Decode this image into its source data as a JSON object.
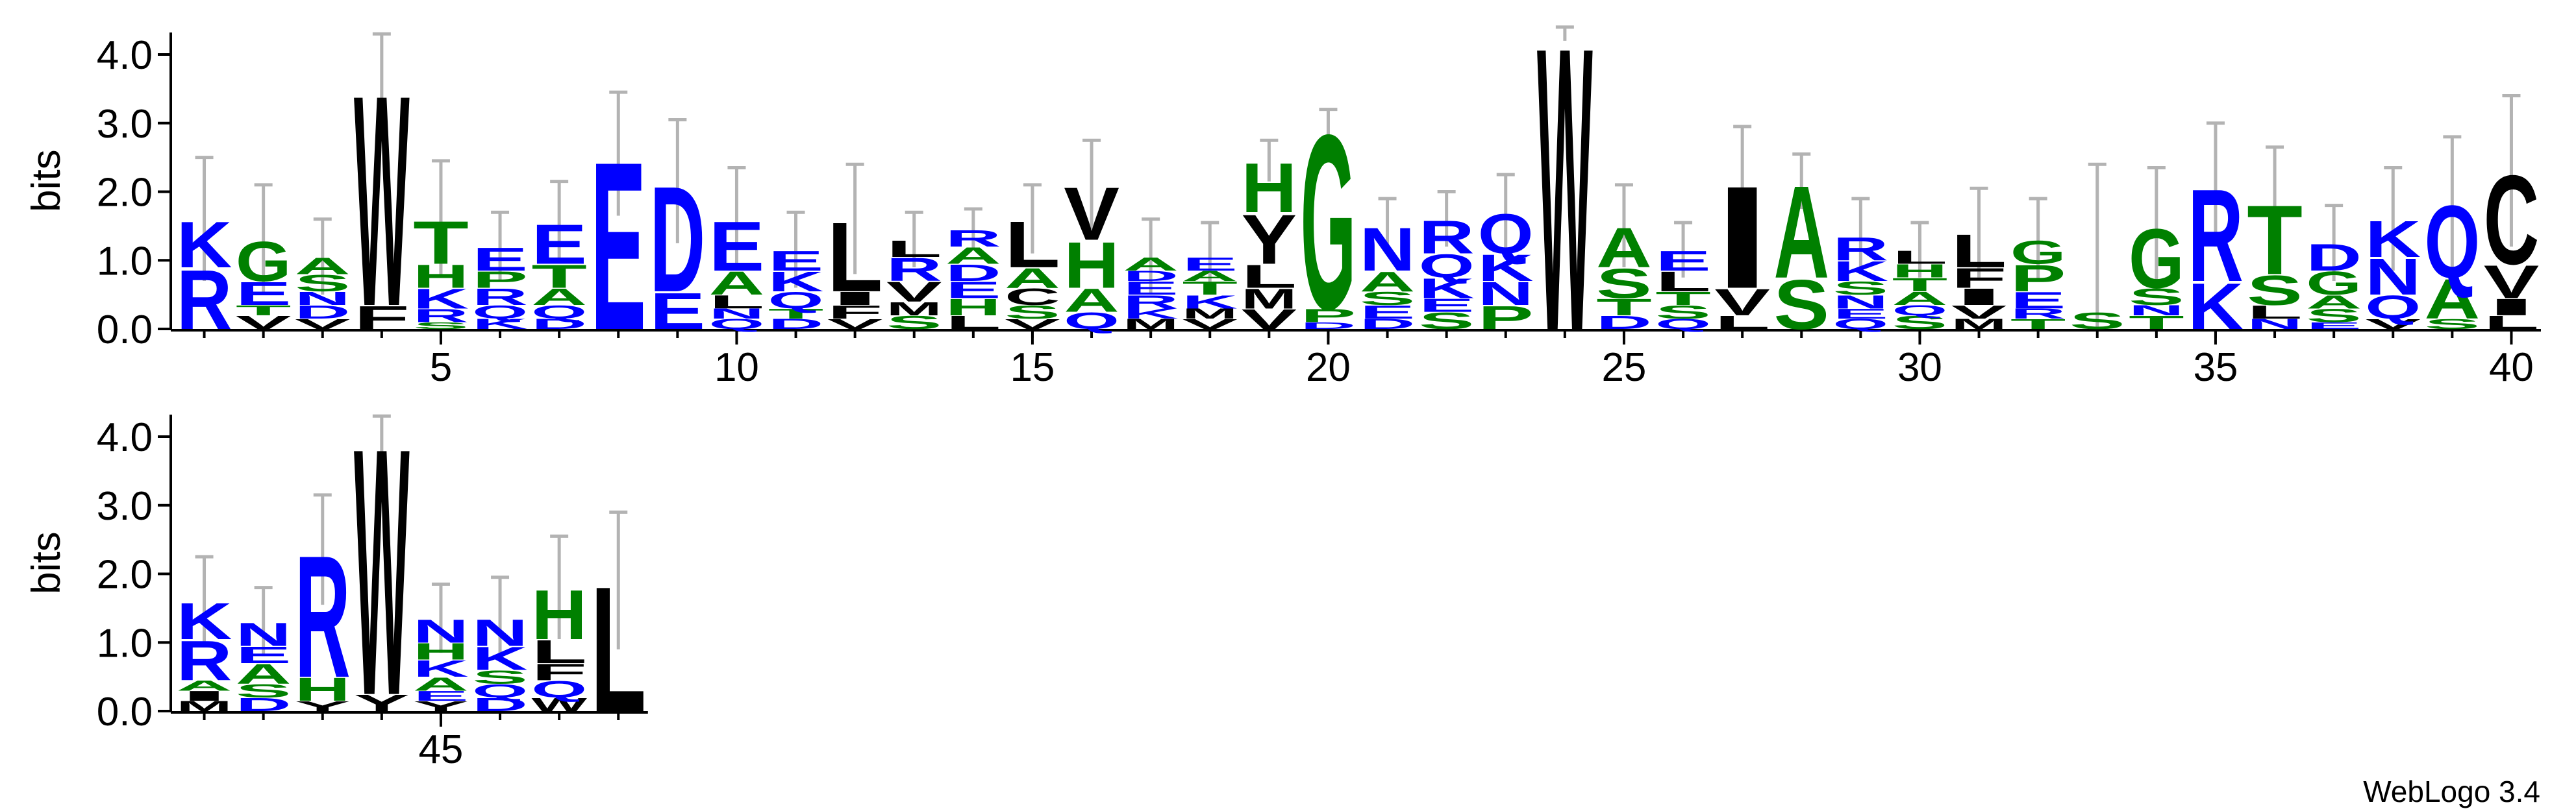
{
  "chart_data": {
    "type": "logo",
    "ylabel": "bits",
    "footer": "WebLogo 3.4",
    "ylim": [
      0,
      4.32
    ],
    "yticks": [
      {
        "value": 0,
        "label": "0.0"
      },
      {
        "value": 1,
        "label": "1.0"
      },
      {
        "value": 2,
        "label": "2.0"
      },
      {
        "value": 3,
        "label": "3.0"
      },
      {
        "value": 4,
        "label": "4.0"
      }
    ],
    "xticks": [
      5,
      10,
      15,
      20,
      25,
      30,
      35,
      40,
      45
    ],
    "colors": {
      "K": "#0000ff",
      "R": "#0000ff",
      "D": "#0000ff",
      "E": "#0000ff",
      "N": "#0000ff",
      "Q": "#0000ff",
      "G": "#008000",
      "H": "#008000",
      "S": "#008000",
      "T": "#008000",
      "A": "#008000",
      "P": "#008000",
      "C": "#000000",
      "F": "#000000",
      "I": "#000000",
      "L": "#000000",
      "M": "#000000",
      "V": "#000000",
      "W": "#000000",
      "Y": "#000000"
    },
    "x": [
      1,
      2,
      3,
      4,
      5,
      6,
      7,
      8,
      9,
      10,
      11,
      12,
      13,
      14,
      15,
      16,
      17,
      18,
      19,
      20,
      21,
      22,
      23,
      24,
      25,
      26,
      27,
      28,
      29,
      30,
      31,
      32,
      33,
      34,
      35,
      36,
      37,
      38,
      39,
      40,
      41,
      42,
      43,
      44,
      45,
      46,
      47,
      48
    ],
    "stacks": [
      [
        {
          "letter": "R",
          "value": 0.9
        },
        {
          "letter": "K",
          "value": 0.7
        }
      ],
      [
        {
          "letter": "V",
          "value": 0.2
        },
        {
          "letter": "T",
          "value": 0.15
        },
        {
          "letter": "E",
          "value": 0.35
        },
        {
          "letter": "G",
          "value": 0.6
        }
      ],
      [
        {
          "letter": "V",
          "value": 0.15
        },
        {
          "letter": "D",
          "value": 0.2
        },
        {
          "letter": "N",
          "value": 0.2
        },
        {
          "letter": "S",
          "value": 0.25
        },
        {
          "letter": "A",
          "value": 0.25
        }
      ],
      [
        {
          "letter": "F",
          "value": 0.35
        },
        {
          "letter": "W",
          "value": 3.2
        }
      ],
      [
        {
          "letter": "S",
          "value": 0.1
        },
        {
          "letter": "R",
          "value": 0.2
        },
        {
          "letter": "K",
          "value": 0.3
        },
        {
          "letter": "H",
          "value": 0.35
        },
        {
          "letter": "T",
          "value": 0.65
        }
      ],
      [
        {
          "letter": "K",
          "value": 0.15
        },
        {
          "letter": "Q",
          "value": 0.2
        },
        {
          "letter": "R",
          "value": 0.25
        },
        {
          "letter": "P",
          "value": 0.25
        },
        {
          "letter": "E",
          "value": 0.35
        }
      ],
      [
        {
          "letter": "D",
          "value": 0.15
        },
        {
          "letter": "Q",
          "value": 0.2
        },
        {
          "letter": "A",
          "value": 0.25
        },
        {
          "letter": "T",
          "value": 0.35
        },
        {
          "letter": "E",
          "value": 0.6
        }
      ],
      [
        {
          "letter": "E",
          "value": 2.55
        }
      ],
      [
        {
          "letter": "E",
          "value": 0.55
        },
        {
          "letter": "D",
          "value": 1.6
        }
      ],
      [
        {
          "letter": "Q",
          "value": 0.15
        },
        {
          "letter": "N",
          "value": 0.15
        },
        {
          "letter": "L",
          "value": 0.2
        },
        {
          "letter": "A",
          "value": 0.35
        },
        {
          "letter": "E",
          "value": 0.75
        }
      ],
      [
        {
          "letter": "D",
          "value": 0.15
        },
        {
          "letter": "T",
          "value": 0.15
        },
        {
          "letter": "Q",
          "value": 0.25
        },
        {
          "letter": "K",
          "value": 0.3
        },
        {
          "letter": "E",
          "value": 0.3
        }
      ],
      [
        {
          "letter": "V",
          "value": 0.15
        },
        {
          "letter": "F",
          "value": 0.2
        },
        {
          "letter": "I",
          "value": 0.2
        },
        {
          "letter": "L",
          "value": 1.05
        }
      ],
      [
        {
          "letter": "S",
          "value": 0.2
        },
        {
          "letter": "M",
          "value": 0.2
        },
        {
          "letter": "V",
          "value": 0.3
        },
        {
          "letter": "R",
          "value": 0.35
        },
        {
          "letter": "L",
          "value": 0.25
        }
      ],
      [
        {
          "letter": "L",
          "value": 0.2
        },
        {
          "letter": "H",
          "value": 0.25
        },
        {
          "letter": "E",
          "value": 0.25
        },
        {
          "letter": "D",
          "value": 0.25
        },
        {
          "letter": "A",
          "value": 0.25
        },
        {
          "letter": "R",
          "value": 0.25
        }
      ],
      [
        {
          "letter": "V",
          "value": 0.15
        },
        {
          "letter": "S",
          "value": 0.2
        },
        {
          "letter": "C",
          "value": 0.25
        },
        {
          "letter": "A",
          "value": 0.3
        },
        {
          "letter": "L",
          "value": 0.7
        }
      ],
      [
        {
          "letter": "Q",
          "value": 0.25
        },
        {
          "letter": "A",
          "value": 0.35
        },
        {
          "letter": "H",
          "value": 0.7
        },
        {
          "letter": "V",
          "value": 0.8
        }
      ],
      [
        {
          "letter": "M",
          "value": 0.15
        },
        {
          "letter": "K",
          "value": 0.15
        },
        {
          "letter": "R",
          "value": 0.2
        },
        {
          "letter": "E",
          "value": 0.2
        },
        {
          "letter": "D",
          "value": 0.15
        },
        {
          "letter": "A",
          "value": 0.2
        }
      ],
      [
        {
          "letter": "V",
          "value": 0.15
        },
        {
          "letter": "M",
          "value": 0.15
        },
        {
          "letter": "K",
          "value": 0.2
        },
        {
          "letter": "T",
          "value": 0.2
        },
        {
          "letter": "A",
          "value": 0.15
        },
        {
          "letter": "E",
          "value": 0.2
        }
      ],
      [
        {
          "letter": "V",
          "value": 0.3
        },
        {
          "letter": "M",
          "value": 0.3
        },
        {
          "letter": "L",
          "value": 0.35
        },
        {
          "letter": "Y",
          "value": 0.75
        },
        {
          "letter": "H",
          "value": 0.75
        }
      ],
      [
        {
          "letter": "D",
          "value": 0.1
        },
        {
          "letter": "P",
          "value": 0.2
        },
        {
          "letter": "G",
          "value": 2.65
        }
      ],
      [
        {
          "letter": "D",
          "value": 0.15
        },
        {
          "letter": "E",
          "value": 0.2
        },
        {
          "letter": "S",
          "value": 0.2
        },
        {
          "letter": "A",
          "value": 0.3
        },
        {
          "letter": "N",
          "value": 0.65
        }
      ],
      [
        {
          "letter": "S",
          "value": 0.25
        },
        {
          "letter": "E",
          "value": 0.2
        },
        {
          "letter": "K",
          "value": 0.3
        },
        {
          "letter": "Q",
          "value": 0.35
        },
        {
          "letter": "R",
          "value": 0.5
        }
      ],
      [
        {
          "letter": "P",
          "value": 0.35
        },
        {
          "letter": "N",
          "value": 0.35
        },
        {
          "letter": "K",
          "value": 0.4
        },
        {
          "letter": "Q",
          "value": 0.6
        }
      ],
      [
        {
          "letter": "W",
          "value": 4.3
        }
      ],
      [
        {
          "letter": "D",
          "value": 0.2
        },
        {
          "letter": "T",
          "value": 0.25
        },
        {
          "letter": "S",
          "value": 0.45
        },
        {
          "letter": "A",
          "value": 0.6
        }
      ],
      [
        {
          "letter": "Q",
          "value": 0.15
        },
        {
          "letter": "S",
          "value": 0.2
        },
        {
          "letter": "T",
          "value": 0.2
        },
        {
          "letter": "L",
          "value": 0.3
        },
        {
          "letter": "E",
          "value": 0.3
        }
      ],
      [
        {
          "letter": "L",
          "value": 0.2
        },
        {
          "letter": "V",
          "value": 0.4
        },
        {
          "letter": "I",
          "value": 1.55
        }
      ],
      [
        {
          "letter": "S",
          "value": 0.75
        },
        {
          "letter": "A",
          "value": 1.4
        }
      ],
      [
        {
          "letter": "Q",
          "value": 0.15
        },
        {
          "letter": "E",
          "value": 0.15
        },
        {
          "letter": "N",
          "value": 0.2
        },
        {
          "letter": "S",
          "value": 0.2
        },
        {
          "letter": "K",
          "value": 0.3
        },
        {
          "letter": "R",
          "value": 0.35
        }
      ],
      [
        {
          "letter": "S",
          "value": 0.2
        },
        {
          "letter": "Q",
          "value": 0.15
        },
        {
          "letter": "A",
          "value": 0.2
        },
        {
          "letter": "T",
          "value": 0.2
        },
        {
          "letter": "H",
          "value": 0.2
        },
        {
          "letter": "L",
          "value": 0.2
        }
      ],
      [
        {
          "letter": "M",
          "value": 0.15
        },
        {
          "letter": "V",
          "value": 0.2
        },
        {
          "letter": "I",
          "value": 0.25
        },
        {
          "letter": "F",
          "value": 0.3
        },
        {
          "letter": "L",
          "value": 0.5
        }
      ],
      [
        {
          "letter": "T",
          "value": 0.15
        },
        {
          "letter": "R",
          "value": 0.15
        },
        {
          "letter": "E",
          "value": 0.25
        },
        {
          "letter": "P",
          "value": 0.4
        },
        {
          "letter": "G",
          "value": 0.35
        }
      ],
      [
        {
          "letter": "S",
          "value": 0.25
        }
      ],
      [
        {
          "letter": "T",
          "value": 0.2
        },
        {
          "letter": "N",
          "value": 0.15
        },
        {
          "letter": "S",
          "value": 0.25
        },
        {
          "letter": "G",
          "value": 0.9
        }
      ],
      [
        {
          "letter": "K",
          "value": 0.7
        },
        {
          "letter": "R",
          "value": 1.4
        }
      ],
      [
        {
          "letter": "N",
          "value": 0.15
        },
        {
          "letter": "L",
          "value": 0.2
        },
        {
          "letter": "S",
          "value": 0.45
        },
        {
          "letter": "T",
          "value": 1.05
        }
      ],
      [
        {
          "letter": "E",
          "value": 0.1
        },
        {
          "letter": "S",
          "value": 0.2
        },
        {
          "letter": "A",
          "value": 0.2
        },
        {
          "letter": "G",
          "value": 0.35
        },
        {
          "letter": "D",
          "value": 0.4
        }
      ],
      [
        {
          "letter": "V",
          "value": 0.15
        },
        {
          "letter": "Q",
          "value": 0.35
        },
        {
          "letter": "N",
          "value": 0.55
        },
        {
          "letter": "K",
          "value": 0.55
        }
      ],
      [
        {
          "letter": "S",
          "value": 0.15
        },
        {
          "letter": "A",
          "value": 0.6
        },
        {
          "letter": "Q",
          "value": 1.1
        }
      ],
      [
        {
          "letter": "L",
          "value": 0.2
        },
        {
          "letter": "I",
          "value": 0.25
        },
        {
          "letter": "V",
          "value": 0.5
        },
        {
          "letter": "C",
          "value": 1.35
        }
      ],
      [
        {
          "letter": "M",
          "value": 0.15
        },
        {
          "letter": "I",
          "value": 0.15
        },
        {
          "letter": "A",
          "value": 0.15
        },
        {
          "letter": "R",
          "value": 0.6
        },
        {
          "letter": "K",
          "value": 0.55
        }
      ],
      [
        {
          "letter": "D",
          "value": 0.2
        },
        {
          "letter": "S",
          "value": 0.2
        },
        {
          "letter": "A",
          "value": 0.3
        },
        {
          "letter": "E",
          "value": 0.25
        },
        {
          "letter": "N",
          "value": 0.35
        }
      ],
      [
        {
          "letter": "Y",
          "value": 0.15
        },
        {
          "letter": "H",
          "value": 0.35
        },
        {
          "letter": "R",
          "value": 1.85
        }
      ],
      [
        {
          "letter": "Y",
          "value": 0.25
        },
        {
          "letter": "W",
          "value": 3.75
        }
      ],
      [
        {
          "letter": "Y",
          "value": 0.15
        },
        {
          "letter": "E",
          "value": 0.15
        },
        {
          "letter": "A",
          "value": 0.2
        },
        {
          "letter": "K",
          "value": 0.25
        },
        {
          "letter": "H",
          "value": 0.25
        },
        {
          "letter": "N",
          "value": 0.35
        }
      ],
      [
        {
          "letter": "D",
          "value": 0.2
        },
        {
          "letter": "Q",
          "value": 0.2
        },
        {
          "letter": "S",
          "value": 0.2
        },
        {
          "letter": "K",
          "value": 0.35
        },
        {
          "letter": "N",
          "value": 0.4
        }
      ],
      [
        {
          "letter": "W",
          "value": 0.2
        },
        {
          "letter": "Q",
          "value": 0.25
        },
        {
          "letter": "F",
          "value": 0.25
        },
        {
          "letter": "L",
          "value": 0.35
        },
        {
          "letter": "H",
          "value": 0.75
        }
      ],
      [
        {
          "letter": "L",
          "value": 1.9
        }
      ]
    ],
    "errors": [
      0.9,
      0.8,
      0.55,
      0.75,
      0.85,
      0.5,
      0.6,
      0.9,
      0.9,
      0.75,
      0.55,
      0.8,
      0.4,
      0.3,
      0.5,
      0.65,
      0.55,
      0.5,
      0.3,
      0.25,
      0.4,
      0.4,
      0.55,
      0.1,
      0.6,
      0.4,
      0.8,
      0.4,
      0.55,
      0.4,
      0.65,
      0.6,
      2.15,
      0.85,
      0.9,
      0.8,
      0.55,
      0.75,
      0.95,
      1.1,
      0.65,
      0.5,
      0.8,
      0.3,
      0.5,
      0.6,
      0.75,
      1.0
    ]
  }
}
